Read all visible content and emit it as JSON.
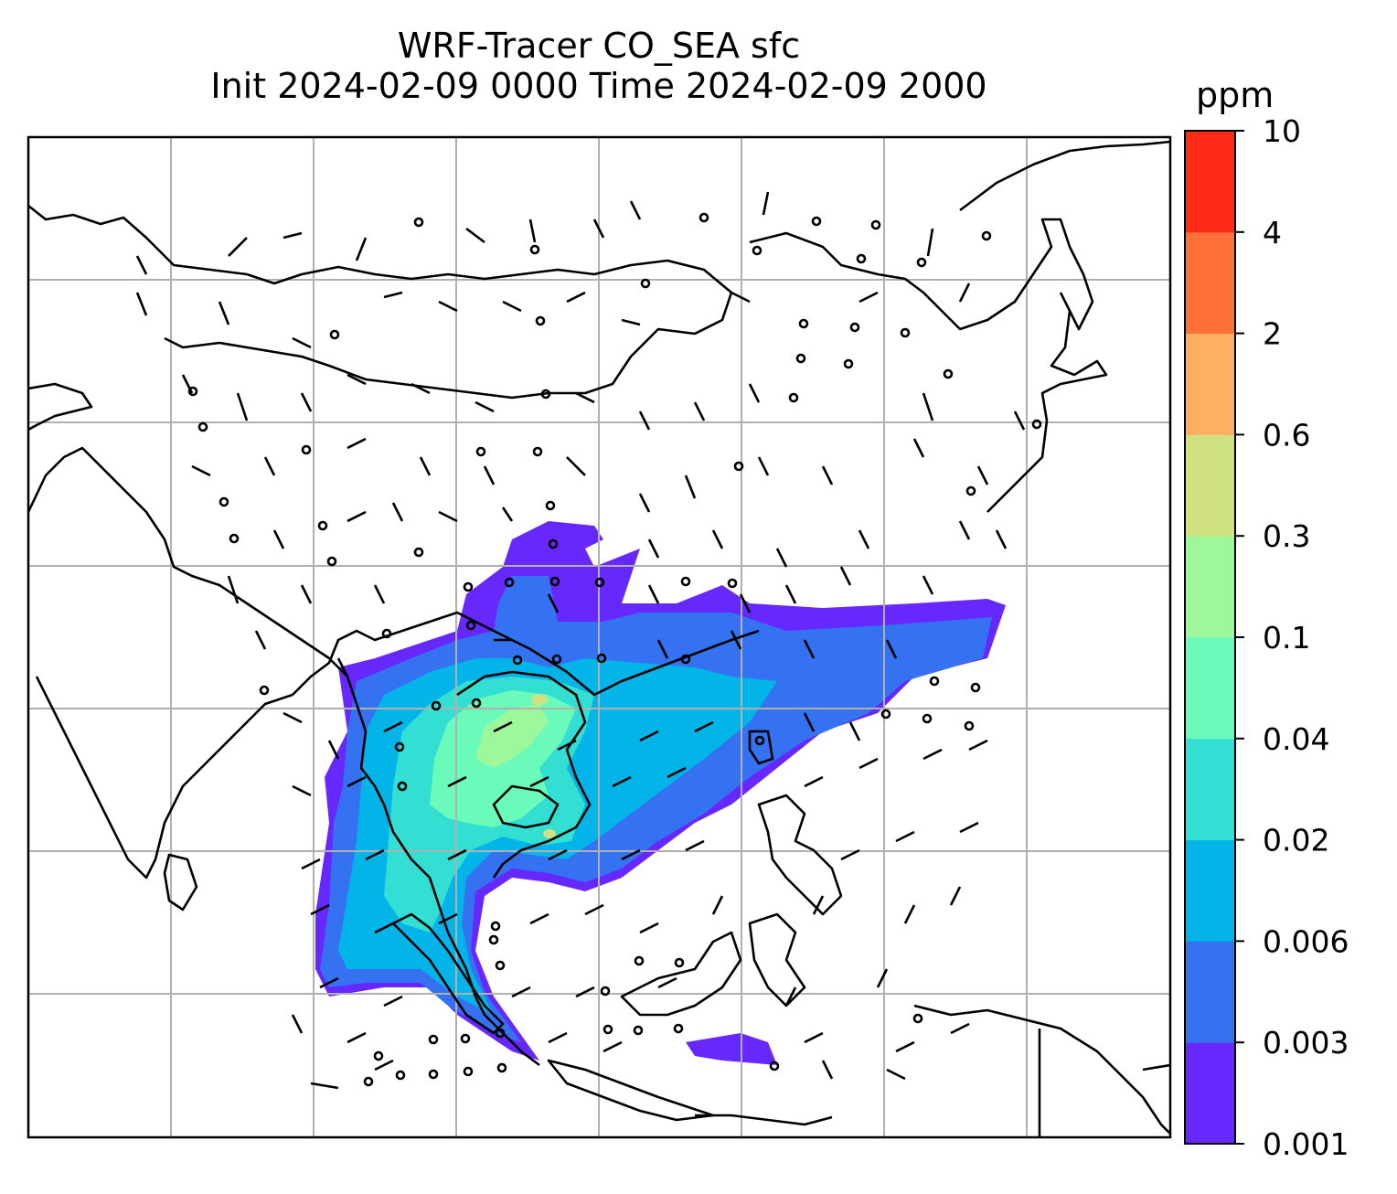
{
  "title": {
    "line1": "WRF-Tracer CO_SEA sfc",
    "line2": "Init 2024-02-09 0000 Time 2024-02-09 2000"
  },
  "colorbar": {
    "units": "ppm",
    "ticks": [
      "0.001",
      "0.003",
      "0.006",
      "0.02",
      "0.04",
      "0.1",
      "0.3",
      "0.6",
      "2",
      "4",
      "10"
    ],
    "colors": [
      "#6628fc",
      "#3472f2",
      "#02b4e8",
      "#32dfd2",
      "#6afbbb",
      "#9cf89a",
      "#d0e182",
      "#feb062",
      "#ff6f3a",
      "#ff2a18"
    ]
  },
  "map": {
    "gridlines": true,
    "coastline_color": "#000000",
    "wind_barbs": true,
    "field": "CO_SEA tracer concentration",
    "plume_region": "Southeast Asia / Indochina extending east over South China Sea to western Pacific"
  }
}
